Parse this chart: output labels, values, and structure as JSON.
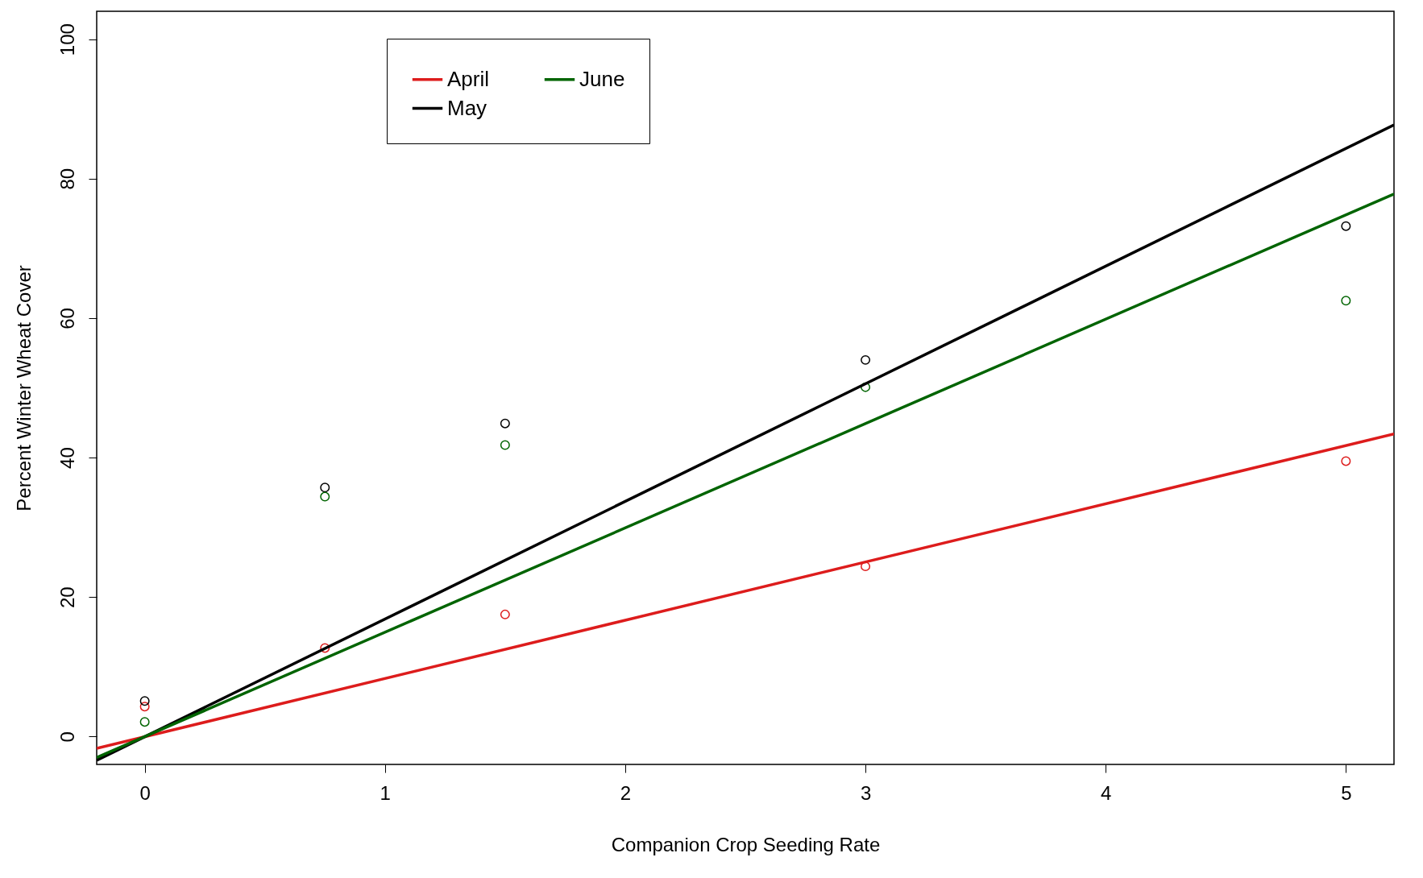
{
  "chart_data": {
    "type": "scatter",
    "xlabel": "Companion Crop Seeding Rate",
    "ylabel": "Percent Winter Wheat Cover",
    "xlim": [
      -0.2,
      5.2
    ],
    "ylim": [
      -4,
      104
    ],
    "xticks": [
      0,
      1,
      2,
      3,
      4,
      5
    ],
    "yticks": [
      0,
      20,
      40,
      60,
      80,
      100
    ],
    "grid": false,
    "legend": "top left",
    "series": [
      {
        "color": "#dd1c1c",
        "x": [
          0,
          0.75,
          1.5,
          3,
          5
        ],
        "values": [
          4.3,
          12.7,
          17.5,
          24.4,
          39.5
        ]
      },
      {
        "color": "#000000",
        "x": [
          0,
          0.75,
          1.5,
          3,
          5
        ],
        "values": [
          5.1,
          35.7,
          44.9,
          54.0,
          73.2
        ]
      },
      {
        "color": "#006400",
        "x": [
          0,
          0.75,
          1.5,
          3,
          5
        ],
        "values": [
          2.1,
          34.4,
          41.8,
          50.1,
          62.5
        ]
      },
      {
        "type": "line",
        "name": "April",
        "color": "#dd1c1c",
        "x": [
          -0.2,
          5.2
        ],
        "values": [
          -1.7,
          43.4
        ]
      },
      {
        "type": "line",
        "name": "May",
        "color": "#000000",
        "x": [
          -0.2,
          5.2
        ],
        "values": [
          -3.4,
          87.7
        ]
      },
      {
        "type": "line",
        "name": "June",
        "color": "#006400",
        "x": [
          -0.2,
          5.2
        ],
        "values": [
          -3.0,
          77.8
        ]
      }
    ]
  }
}
